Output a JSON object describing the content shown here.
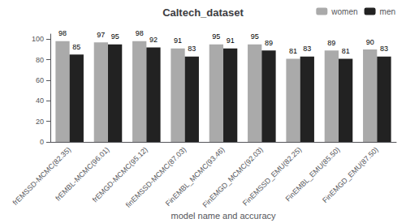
{
  "chart_data": {
    "type": "bar",
    "title": "Caltech_dataset",
    "xlabel": "model name and accuracy",
    "categories": [
      "frEMSSD-MCMC(82.35)",
      "frEMBL-MCMC(96.01)",
      "frEMGD-MCMC(95.12)",
      "finEMSSD-MCMC(87.03)",
      "FinEMBL_MCMC(93.46)",
      "FinEMGD_MCMC(92.03)",
      "FinEMSSD_EMU(82.25)",
      "FinEMBL_EMU(85.50)",
      "FinEMGD_EMU(87.50)"
    ],
    "series": [
      {
        "name": "women",
        "color": "#aaaaaa",
        "values": [
          98,
          97,
          98,
          91,
          95,
          95,
          81,
          89,
          90
        ]
      },
      {
        "name": "men",
        "color": "#222222",
        "values": [
          85,
          95,
          92,
          83,
          91,
          89,
          83,
          81,
          83
        ]
      }
    ],
    "ylim": [
      0,
      105
    ],
    "yticks": [
      0,
      20,
      40,
      60,
      80,
      100
    ],
    "data_labels": true,
    "legend": "upper right",
    "grid": false
  }
}
